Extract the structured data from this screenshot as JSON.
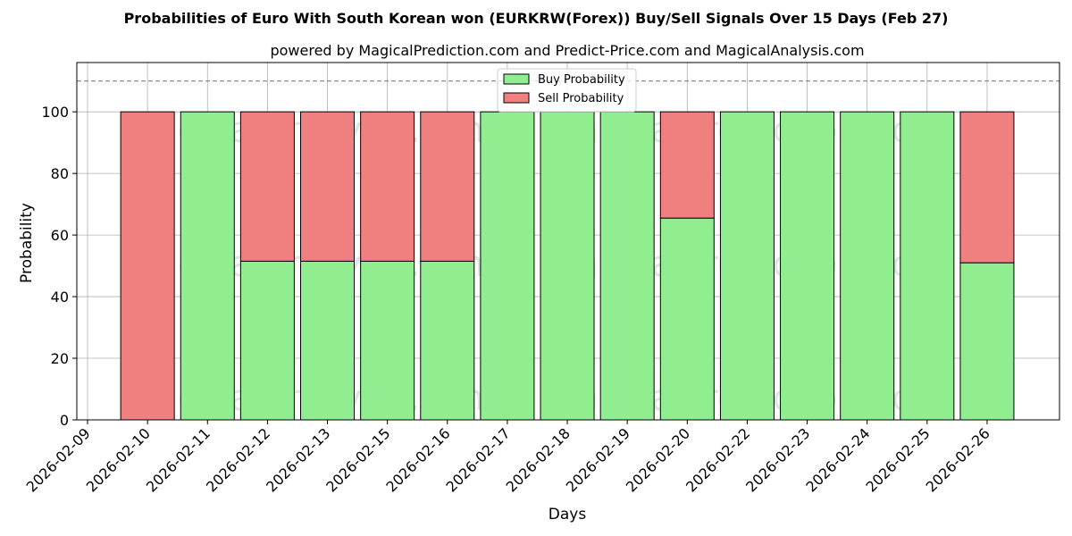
{
  "chart_data": {
    "type": "bar",
    "stacked": true,
    "title": "Probabilities of Euro With South Korean won (EURKRW(Forex)) Buy/Sell Signals Over 15 Days (Feb 27)",
    "subtitle": "powered by MagicalPrediction.com and Predict-Price.com and MagicalAnalysis.com",
    "xlabel": "Days",
    "ylabel": "Probability",
    "x_tick_labels": [
      "2026-02-09",
      "2026-02-10",
      "2026-02-11",
      "2026-02-12",
      "2026-02-13",
      "2026-02-15",
      "2026-02-16",
      "2026-02-17",
      "2026-02-18",
      "2026-02-19",
      "2026-02-20",
      "2026-02-22",
      "2026-02-23",
      "2026-02-24",
      "2026-02-25",
      "2026-02-26"
    ],
    "categories": [
      "2026-02-10",
      "2026-02-11",
      "2026-02-12",
      "2026-02-13",
      "2026-02-15",
      "2026-02-16",
      "2026-02-17",
      "2026-02-18",
      "2026-02-19",
      "2026-02-20",
      "2026-02-22",
      "2026-02-23",
      "2026-02-24",
      "2026-02-25",
      "2026-02-26"
    ],
    "series": [
      {
        "name": "Buy Probability",
        "color": "#90ee90",
        "values": [
          0,
          100,
          51.5,
          51.5,
          51.5,
          51.5,
          100,
          100,
          100,
          65.5,
          100,
          100,
          100,
          100,
          51
        ]
      },
      {
        "name": "Sell Probability",
        "color": "#f08080",
        "values": [
          100,
          0,
          48.5,
          48.5,
          48.5,
          48.5,
          0,
          0,
          0,
          34.5,
          0,
          0,
          0,
          0,
          49
        ]
      }
    ],
    "ylim": [
      0,
      116
    ],
    "yticks": [
      0,
      20,
      40,
      60,
      80,
      100
    ],
    "reference_line": {
      "y": 110,
      "style": "dashed",
      "color": "#808080"
    },
    "grid": true,
    "legend_position": "top-center",
    "watermarks": [
      "MagicalAnalysis.com",
      "MagicalPrediction.com"
    ]
  }
}
